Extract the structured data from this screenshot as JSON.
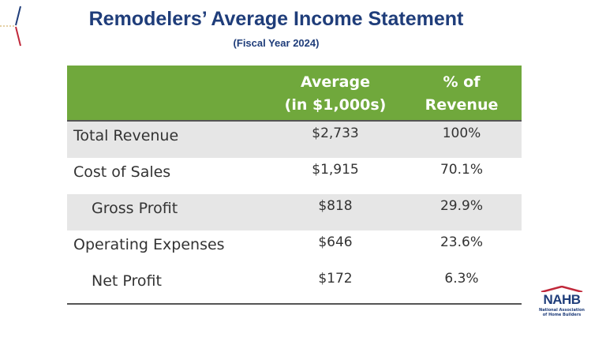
{
  "header": {
    "title": "Remodelers’ Average Income Statement",
    "subtitle": "(Fiscal Year 2024)"
  },
  "table": {
    "columns": [
      [
        "Average",
        "(in $1,000s)"
      ],
      [
        "% of",
        "Revenue"
      ]
    ],
    "rows": [
      [
        "Total Revenue",
        "$2,733",
        "100%"
      ],
      [
        "Cost of Sales",
        "$1,915",
        "70.1%"
      ],
      [
        "Gross Profit",
        "$818",
        "29.9%"
      ],
      [
        "Operating Expenses",
        "$646",
        "23.6%"
      ],
      [
        "Net Profit",
        "$172",
        "6.3%"
      ]
    ]
  },
  "logo": {
    "name": "NAHB",
    "lines": [
      "National Association",
      "of Home Builders"
    ]
  }
}
